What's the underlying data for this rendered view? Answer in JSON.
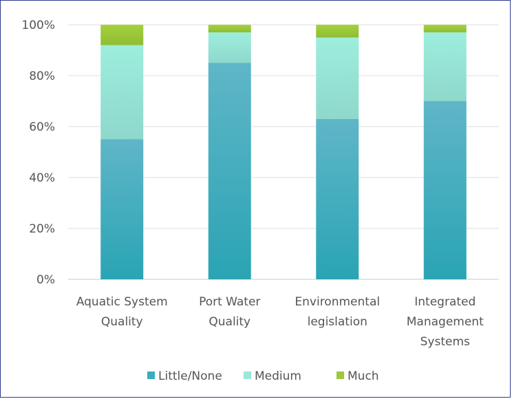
{
  "chart_data": {
    "type": "bar",
    "stacked": true,
    "percent_stacked": true,
    "categories": [
      [
        "Aquatic System",
        "Quality"
      ],
      [
        "Port Water",
        "Quality"
      ],
      [
        "Environmental",
        "legislation"
      ],
      [
        "Integrated",
        "Management",
        "Systems"
      ]
    ],
    "series": [
      {
        "name": "Little/None",
        "color": "#38aebf",
        "values": [
          55,
          85,
          63,
          70
        ]
      },
      {
        "name": "Medium",
        "color": "#9ee6d8",
        "values": [
          37,
          12,
          32,
          27
        ]
      },
      {
        "name": "Much",
        "color": "#9cc83a",
        "values": [
          8,
          3,
          5,
          3
        ]
      }
    ],
    "yticks": [
      "0%",
      "20%",
      "40%",
      "60%",
      "80%",
      "100%"
    ],
    "ylim": [
      0,
      100
    ],
    "grid": true,
    "legend_position": "bottom"
  }
}
